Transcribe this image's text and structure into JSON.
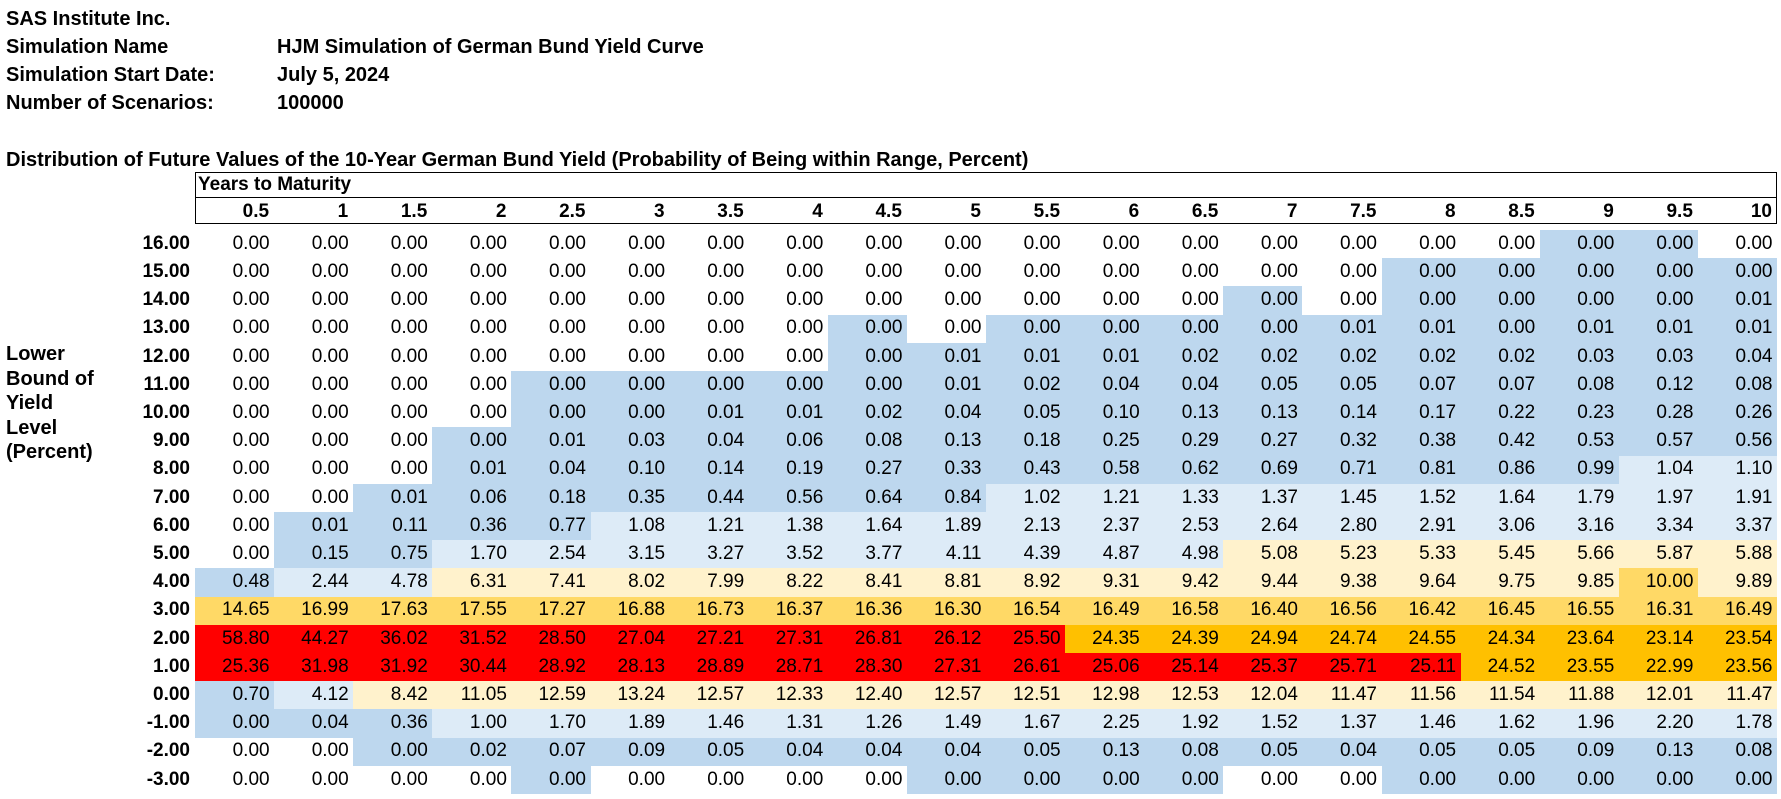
{
  "header": {
    "org": "SAS Institute Inc.",
    "sim_name_label": "Simulation Name",
    "sim_name_value": "HJM Simulation of German Bund Yield Curve",
    "start_date_label": "Simulation Start Date:",
    "start_date_value": "July 5, 2024",
    "scenarios_label": "Number of Scenarios:",
    "scenarios_value": "100000"
  },
  "table_title": "Distribution of Future Values of the 10-Year German Bund Yield (Probability of Being within Range, Percent)",
  "column_group_label": "Years to Maturity",
  "side_label": [
    "Lower",
    "Bound of",
    "Yield",
    "Level",
    "(Percent)"
  ],
  "colors": {
    "none": "#ffffff",
    "blue": "#bdd7ee",
    "lightblue": "#ddebf7",
    "cream": "#fff2cc",
    "yellow": "#ffd966",
    "orange": "#ffc000",
    "red": "#ff0000"
  },
  "columns": [
    "0.5",
    "1",
    "1.5",
    "2",
    "2.5",
    "3",
    "3.5",
    "4",
    "4.5",
    "5",
    "5.5",
    "6",
    "6.5",
    "7",
    "7.5",
    "8",
    "8.5",
    "9",
    "9.5",
    "10"
  ],
  "rows": [
    {
      "label": "16.00",
      "values": [
        "0.00",
        "0.00",
        "0.00",
        "0.00",
        "0.00",
        "0.00",
        "0.00",
        "0.00",
        "0.00",
        "0.00",
        "0.00",
        "0.00",
        "0.00",
        "0.00",
        "0.00",
        "0.00",
        "0.00",
        "0.00",
        "0.00",
        "0.00"
      ],
      "fills": [
        "none",
        "none",
        "none",
        "none",
        "none",
        "none",
        "none",
        "none",
        "none",
        "none",
        "none",
        "none",
        "none",
        "none",
        "none",
        "none",
        "none",
        "blue",
        "blue",
        "none"
      ]
    },
    {
      "label": "15.00",
      "values": [
        "0.00",
        "0.00",
        "0.00",
        "0.00",
        "0.00",
        "0.00",
        "0.00",
        "0.00",
        "0.00",
        "0.00",
        "0.00",
        "0.00",
        "0.00",
        "0.00",
        "0.00",
        "0.00",
        "0.00",
        "0.00",
        "0.00",
        "0.00"
      ],
      "fills": [
        "none",
        "none",
        "none",
        "none",
        "none",
        "none",
        "none",
        "none",
        "none",
        "none",
        "none",
        "none",
        "none",
        "none",
        "none",
        "blue",
        "blue",
        "blue",
        "blue",
        "blue"
      ]
    },
    {
      "label": "14.00",
      "values": [
        "0.00",
        "0.00",
        "0.00",
        "0.00",
        "0.00",
        "0.00",
        "0.00",
        "0.00",
        "0.00",
        "0.00",
        "0.00",
        "0.00",
        "0.00",
        "0.00",
        "0.00",
        "0.00",
        "0.00",
        "0.00",
        "0.00",
        "0.01"
      ],
      "fills": [
        "none",
        "none",
        "none",
        "none",
        "none",
        "none",
        "none",
        "none",
        "none",
        "none",
        "none",
        "none",
        "none",
        "blue",
        "none",
        "blue",
        "blue",
        "blue",
        "blue",
        "blue"
      ]
    },
    {
      "label": "13.00",
      "values": [
        "0.00",
        "0.00",
        "0.00",
        "0.00",
        "0.00",
        "0.00",
        "0.00",
        "0.00",
        "0.00",
        "0.00",
        "0.00",
        "0.00",
        "0.00",
        "0.00",
        "0.01",
        "0.01",
        "0.00",
        "0.01",
        "0.01",
        "0.01"
      ],
      "fills": [
        "none",
        "none",
        "none",
        "none",
        "none",
        "none",
        "none",
        "none",
        "blue",
        "none",
        "blue",
        "blue",
        "blue",
        "blue",
        "blue",
        "blue",
        "blue",
        "blue",
        "blue",
        "blue"
      ]
    },
    {
      "label": "12.00",
      "values": [
        "0.00",
        "0.00",
        "0.00",
        "0.00",
        "0.00",
        "0.00",
        "0.00",
        "0.00",
        "0.00",
        "0.01",
        "0.01",
        "0.01",
        "0.02",
        "0.02",
        "0.02",
        "0.02",
        "0.02",
        "0.03",
        "0.03",
        "0.04"
      ],
      "fills": [
        "none",
        "none",
        "none",
        "none",
        "none",
        "none",
        "none",
        "none",
        "blue",
        "blue",
        "blue",
        "blue",
        "blue",
        "blue",
        "blue",
        "blue",
        "blue",
        "blue",
        "blue",
        "blue"
      ]
    },
    {
      "label": "11.00",
      "values": [
        "0.00",
        "0.00",
        "0.00",
        "0.00",
        "0.00",
        "0.00",
        "0.00",
        "0.00",
        "0.00",
        "0.01",
        "0.02",
        "0.04",
        "0.04",
        "0.05",
        "0.05",
        "0.07",
        "0.07",
        "0.08",
        "0.12",
        "0.08"
      ],
      "fills": [
        "none",
        "none",
        "none",
        "none",
        "blue",
        "blue",
        "blue",
        "blue",
        "blue",
        "blue",
        "blue",
        "blue",
        "blue",
        "blue",
        "blue",
        "blue",
        "blue",
        "blue",
        "blue",
        "blue"
      ]
    },
    {
      "label": "10.00",
      "values": [
        "0.00",
        "0.00",
        "0.00",
        "0.00",
        "0.00",
        "0.00",
        "0.01",
        "0.01",
        "0.02",
        "0.04",
        "0.05",
        "0.10",
        "0.13",
        "0.13",
        "0.14",
        "0.17",
        "0.22",
        "0.23",
        "0.28",
        "0.26"
      ],
      "fills": [
        "none",
        "none",
        "none",
        "none",
        "blue",
        "blue",
        "blue",
        "blue",
        "blue",
        "blue",
        "blue",
        "blue",
        "blue",
        "blue",
        "blue",
        "blue",
        "blue",
        "blue",
        "blue",
        "blue"
      ]
    },
    {
      "label": "9.00",
      "values": [
        "0.00",
        "0.00",
        "0.00",
        "0.00",
        "0.01",
        "0.03",
        "0.04",
        "0.06",
        "0.08",
        "0.13",
        "0.18",
        "0.25",
        "0.29",
        "0.27",
        "0.32",
        "0.38",
        "0.42",
        "0.53",
        "0.57",
        "0.56"
      ],
      "fills": [
        "none",
        "none",
        "none",
        "blue",
        "blue",
        "blue",
        "blue",
        "blue",
        "blue",
        "blue",
        "blue",
        "blue",
        "blue",
        "blue",
        "blue",
        "blue",
        "blue",
        "blue",
        "blue",
        "blue"
      ]
    },
    {
      "label": "8.00",
      "values": [
        "0.00",
        "0.00",
        "0.00",
        "0.01",
        "0.04",
        "0.10",
        "0.14",
        "0.19",
        "0.27",
        "0.33",
        "0.43",
        "0.58",
        "0.62",
        "0.69",
        "0.71",
        "0.81",
        "0.86",
        "0.99",
        "1.04",
        "1.10"
      ],
      "fills": [
        "none",
        "none",
        "none",
        "blue",
        "blue",
        "blue",
        "blue",
        "blue",
        "blue",
        "blue",
        "blue",
        "blue",
        "blue",
        "blue",
        "blue",
        "blue",
        "blue",
        "blue",
        "lightblue",
        "lightblue"
      ]
    },
    {
      "label": "7.00",
      "values": [
        "0.00",
        "0.00",
        "0.01",
        "0.06",
        "0.18",
        "0.35",
        "0.44",
        "0.56",
        "0.64",
        "0.84",
        "1.02",
        "1.21",
        "1.33",
        "1.37",
        "1.45",
        "1.52",
        "1.64",
        "1.79",
        "1.97",
        "1.91"
      ],
      "fills": [
        "none",
        "none",
        "blue",
        "blue",
        "blue",
        "blue",
        "blue",
        "blue",
        "blue",
        "blue",
        "lightblue",
        "lightblue",
        "lightblue",
        "lightblue",
        "lightblue",
        "lightblue",
        "lightblue",
        "lightblue",
        "lightblue",
        "lightblue"
      ]
    },
    {
      "label": "6.00",
      "values": [
        "0.00",
        "0.01",
        "0.11",
        "0.36",
        "0.77",
        "1.08",
        "1.21",
        "1.38",
        "1.64",
        "1.89",
        "2.13",
        "2.37",
        "2.53",
        "2.64",
        "2.80",
        "2.91",
        "3.06",
        "3.16",
        "3.34",
        "3.37"
      ],
      "fills": [
        "none",
        "blue",
        "blue",
        "blue",
        "blue",
        "lightblue",
        "lightblue",
        "lightblue",
        "lightblue",
        "lightblue",
        "lightblue",
        "lightblue",
        "lightblue",
        "lightblue",
        "lightblue",
        "lightblue",
        "lightblue",
        "lightblue",
        "lightblue",
        "lightblue"
      ]
    },
    {
      "label": "5.00",
      "values": [
        "0.00",
        "0.15",
        "0.75",
        "1.70",
        "2.54",
        "3.15",
        "3.27",
        "3.52",
        "3.77",
        "4.11",
        "4.39",
        "4.87",
        "4.98",
        "5.08",
        "5.23",
        "5.33",
        "5.45",
        "5.66",
        "5.87",
        "5.88"
      ],
      "fills": [
        "none",
        "blue",
        "blue",
        "lightblue",
        "lightblue",
        "lightblue",
        "lightblue",
        "lightblue",
        "lightblue",
        "lightblue",
        "lightblue",
        "lightblue",
        "lightblue",
        "cream",
        "cream",
        "cream",
        "cream",
        "cream",
        "cream",
        "cream"
      ]
    },
    {
      "label": "4.00",
      "values": [
        "0.48",
        "2.44",
        "4.78",
        "6.31",
        "7.41",
        "8.02",
        "7.99",
        "8.22",
        "8.41",
        "8.81",
        "8.92",
        "9.31",
        "9.42",
        "9.44",
        "9.38",
        "9.64",
        "9.75",
        "9.85",
        "10.00",
        "9.89"
      ],
      "fills": [
        "blue",
        "lightblue",
        "lightblue",
        "cream",
        "cream",
        "cream",
        "cream",
        "cream",
        "cream",
        "cream",
        "cream",
        "cream",
        "cream",
        "cream",
        "cream",
        "cream",
        "cream",
        "cream",
        "yellow",
        "cream"
      ]
    },
    {
      "label": "3.00",
      "values": [
        "14.65",
        "16.99",
        "17.63",
        "17.55",
        "17.27",
        "16.88",
        "16.73",
        "16.37",
        "16.36",
        "16.30",
        "16.54",
        "16.49",
        "16.58",
        "16.40",
        "16.56",
        "16.42",
        "16.45",
        "16.55",
        "16.31",
        "16.49"
      ],
      "fills": [
        "yellow",
        "yellow",
        "yellow",
        "yellow",
        "yellow",
        "yellow",
        "yellow",
        "yellow",
        "yellow",
        "yellow",
        "yellow",
        "yellow",
        "yellow",
        "yellow",
        "yellow",
        "yellow",
        "yellow",
        "yellow",
        "yellow",
        "yellow"
      ]
    },
    {
      "label": "2.00",
      "values": [
        "58.80",
        "44.27",
        "36.02",
        "31.52",
        "28.50",
        "27.04",
        "27.21",
        "27.31",
        "26.81",
        "26.12",
        "25.50",
        "24.35",
        "24.39",
        "24.94",
        "24.74",
        "24.55",
        "24.34",
        "23.64",
        "23.14",
        "23.54"
      ],
      "fills": [
        "red",
        "red",
        "red",
        "red",
        "red",
        "red",
        "red",
        "red",
        "red",
        "red",
        "red",
        "orange",
        "orange",
        "orange",
        "orange",
        "orange",
        "orange",
        "orange",
        "orange",
        "orange"
      ]
    },
    {
      "label": "1.00",
      "values": [
        "25.36",
        "31.98",
        "31.92",
        "30.44",
        "28.92",
        "28.13",
        "28.89",
        "28.71",
        "28.30",
        "27.31",
        "26.61",
        "25.06",
        "25.14",
        "25.37",
        "25.71",
        "25.11",
        "24.52",
        "23.55",
        "22.99",
        "23.56"
      ],
      "fills": [
        "red",
        "red",
        "red",
        "red",
        "red",
        "red",
        "red",
        "red",
        "red",
        "red",
        "red",
        "red",
        "red",
        "red",
        "red",
        "red",
        "orange",
        "orange",
        "orange",
        "orange"
      ]
    },
    {
      "label": "0.00",
      "values": [
        "0.70",
        "4.12",
        "8.42",
        "11.05",
        "12.59",
        "13.24",
        "12.57",
        "12.33",
        "12.40",
        "12.57",
        "12.51",
        "12.98",
        "12.53",
        "12.04",
        "11.47",
        "11.56",
        "11.54",
        "11.88",
        "12.01",
        "11.47"
      ],
      "fills": [
        "blue",
        "lightblue",
        "cream",
        "cream",
        "cream",
        "cream",
        "cream",
        "cream",
        "cream",
        "cream",
        "cream",
        "cream",
        "cream",
        "cream",
        "cream",
        "cream",
        "cream",
        "cream",
        "cream",
        "cream"
      ]
    },
    {
      "label": "-1.00",
      "values": [
        "0.00",
        "0.04",
        "0.36",
        "1.00",
        "1.70",
        "1.89",
        "1.46",
        "1.31",
        "1.26",
        "1.49",
        "1.67",
        "2.25",
        "1.92",
        "1.52",
        "1.37",
        "1.46",
        "1.62",
        "1.96",
        "2.20",
        "1.78"
      ],
      "fills": [
        "blue",
        "blue",
        "blue",
        "lightblue",
        "lightblue",
        "lightblue",
        "lightblue",
        "lightblue",
        "lightblue",
        "lightblue",
        "lightblue",
        "lightblue",
        "lightblue",
        "lightblue",
        "lightblue",
        "lightblue",
        "lightblue",
        "lightblue",
        "lightblue",
        "lightblue"
      ]
    },
    {
      "label": "-2.00",
      "values": [
        "0.00",
        "0.00",
        "0.00",
        "0.02",
        "0.07",
        "0.09",
        "0.05",
        "0.04",
        "0.04",
        "0.04",
        "0.05",
        "0.13",
        "0.08",
        "0.05",
        "0.04",
        "0.05",
        "0.05",
        "0.09",
        "0.13",
        "0.08"
      ],
      "fills": [
        "none",
        "none",
        "blue",
        "blue",
        "blue",
        "blue",
        "blue",
        "blue",
        "blue",
        "blue",
        "blue",
        "blue",
        "blue",
        "blue",
        "blue",
        "blue",
        "blue",
        "blue",
        "blue",
        "blue"
      ]
    },
    {
      "label": "-3.00",
      "values": [
        "0.00",
        "0.00",
        "0.00",
        "0.00",
        "0.00",
        "0.00",
        "0.00",
        "0.00",
        "0.00",
        "0.00",
        "0.00",
        "0.00",
        "0.00",
        "0.00",
        "0.00",
        "0.00",
        "0.00",
        "0.00",
        "0.00",
        "0.00"
      ],
      "fills": [
        "none",
        "none",
        "none",
        "none",
        "blue",
        "none",
        "none",
        "none",
        "none",
        "blue",
        "blue",
        "blue",
        "blue",
        "none",
        "none",
        "blue",
        "blue",
        "blue",
        "blue",
        "blue"
      ]
    }
  ]
}
